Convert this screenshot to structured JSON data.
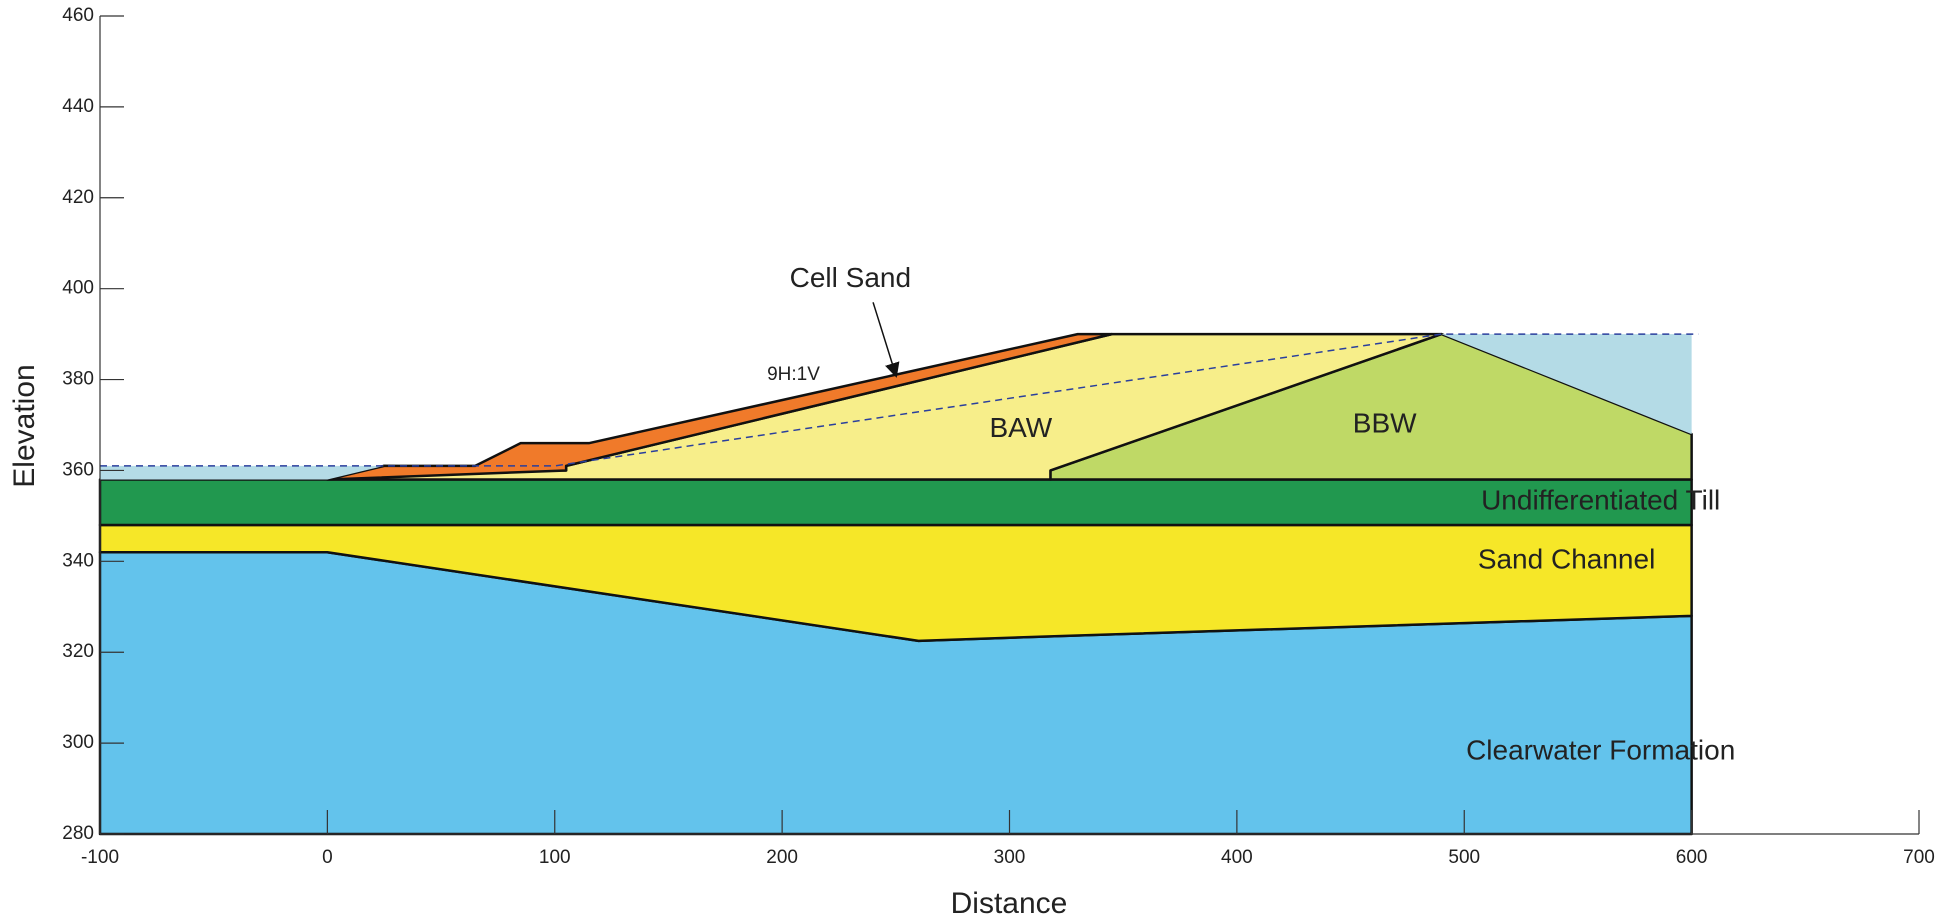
{
  "chart_data": {
    "type": "cross-section",
    "xlabel": "Distance",
    "ylabel": "Elevation",
    "xlim": [
      -100,
      700
    ],
    "ylim": [
      280,
      460
    ],
    "xticks": [
      -100,
      0,
      100,
      200,
      300,
      400,
      500,
      600,
      700
    ],
    "yticks": [
      280,
      300,
      320,
      340,
      360,
      380,
      400,
      420,
      440,
      460
    ],
    "regions": [
      {
        "name": "Clearwater Formation",
        "color": "#63c3ec",
        "x": [
          -100,
          600,
          600,
          318,
          260,
          0,
          -100
        ],
        "y": [
          280,
          280,
          328,
          323.5,
          322.5,
          342,
          342
        ]
      },
      {
        "name": "Sand Channel",
        "color": "#f6e728",
        "x": [
          -100,
          0,
          260,
          318,
          600,
          600,
          -100
        ],
        "y": [
          342,
          342,
          322.5,
          323.5,
          328,
          348,
          348
        ]
      },
      {
        "name": "Undifferentiated Till",
        "color": "#21984f",
        "x": [
          -100,
          600,
          600,
          -100
        ],
        "y": [
          348,
          348,
          358,
          358
        ]
      },
      {
        "name": "BBW",
        "color": "#bfd966",
        "x": [
          318,
          318,
          490,
          600,
          600
        ],
        "y": [
          358,
          360,
          390,
          368,
          358
        ]
      },
      {
        "name": "BAW",
        "color": "#f7ee8a",
        "x": [
          0,
          318,
          318,
          490,
          345,
          105,
          105,
          25
        ],
        "y": [
          358,
          358,
          360,
          390,
          390,
          361,
          360,
          361
        ]
      },
      {
        "name": "Cell Sand",
        "color": "#f07a2a",
        "x": [
          0,
          25,
          65,
          85,
          115,
          330,
          345,
          105,
          105
        ],
        "y": [
          358,
          361,
          361,
          366,
          366,
          390,
          390,
          361,
          360
        ]
      },
      {
        "color": "#b4dbe6",
        "x": [
          -100,
          -100,
          25,
          0
        ],
        "y": [
          358,
          361,
          361,
          358
        ]
      },
      {
        "color": "#b4dbe6",
        "x": [
          490,
          600,
          600
        ],
        "y": [
          390,
          390,
          368
        ]
      }
    ],
    "phreatic": {
      "x": [
        -100,
        100,
        490,
        603
      ],
      "y": [
        361,
        361,
        390,
        390
      ]
    },
    "annotations": [
      "9H:1V"
    ]
  }
}
